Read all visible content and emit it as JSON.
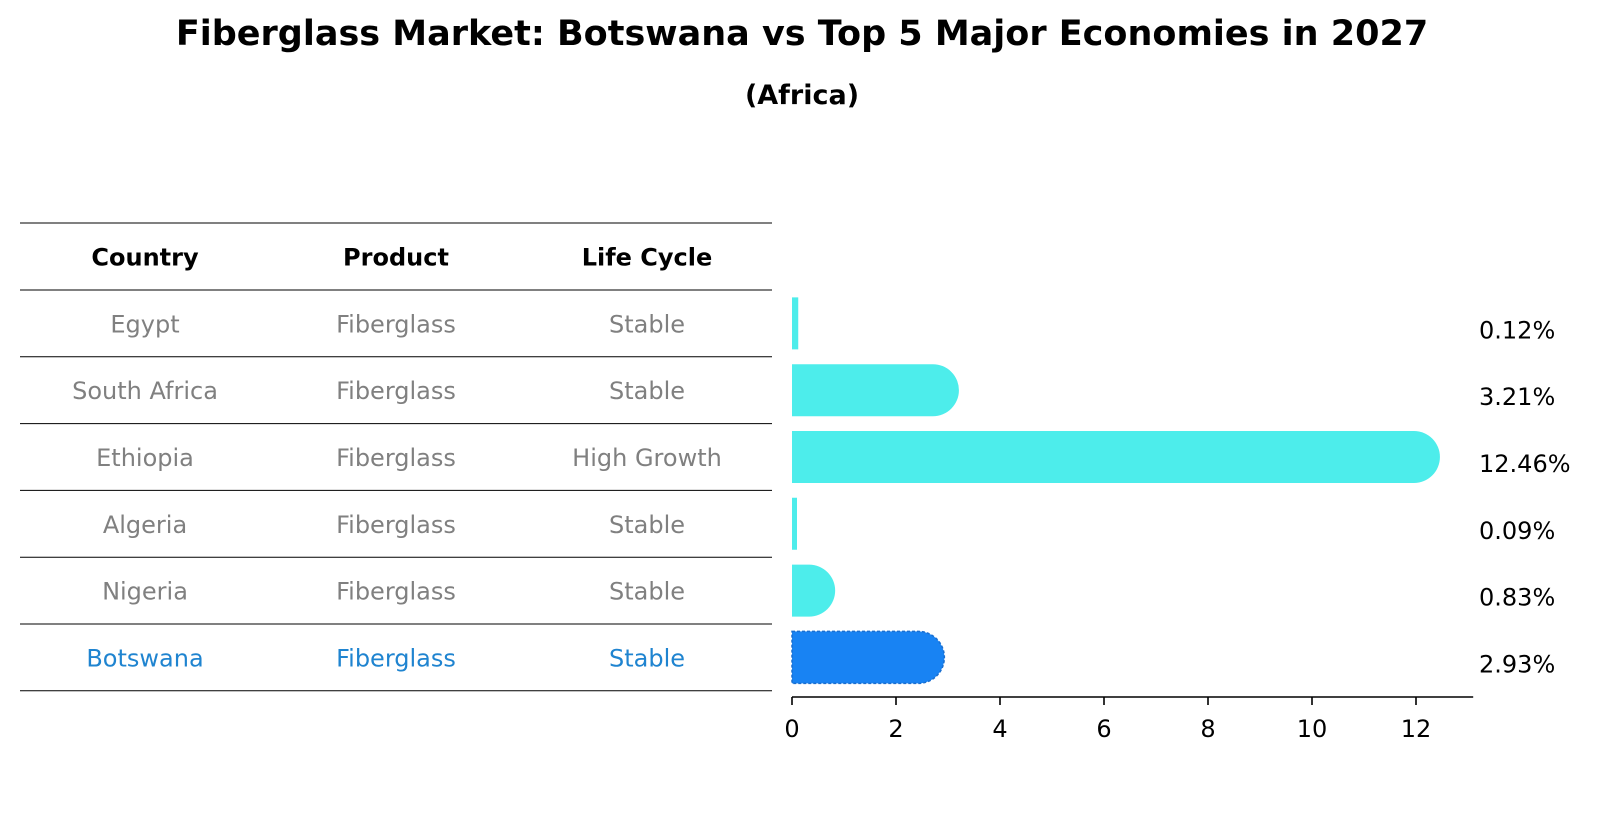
{
  "title": "Fiberglass Market: Botswana vs Top 5 Major Economies in 2027",
  "subtitle": "(Africa)",
  "colors": {
    "bar": "#4DEDEB",
    "highlight_bar": "#1883F3",
    "highlight_text": "#1F84D0",
    "muted_text": "#808080"
  },
  "chart_data": {
    "type": "bar",
    "orientation": "horizontal",
    "table": {
      "columns": [
        "Country",
        "Product",
        "Life Cycle"
      ],
      "rows": [
        {
          "country": "Egypt",
          "product": "Fiberglass",
          "life_cycle": "Stable"
        },
        {
          "country": "South Africa",
          "product": "Fiberglass",
          "life_cycle": "Stable"
        },
        {
          "country": "Ethiopia",
          "product": "Fiberglass",
          "life_cycle": "High Growth"
        },
        {
          "country": "Algeria",
          "product": "Fiberglass",
          "life_cycle": "Stable"
        },
        {
          "country": "Nigeria",
          "product": "Fiberglass",
          "life_cycle": "Stable"
        },
        {
          "country": "Botswana",
          "product": "Fiberglass",
          "life_cycle": "Stable",
          "highlight": true
        }
      ]
    },
    "categories": [
      "Egypt",
      "South Africa",
      "Ethiopia",
      "Algeria",
      "Nigeria",
      "Botswana"
    ],
    "values": [
      0.12,
      3.21,
      12.46,
      0.09,
      0.83,
      2.93
    ],
    "value_labels": [
      "0.12%",
      "3.21%",
      "12.46%",
      "0.09%",
      "0.83%",
      "2.93%"
    ],
    "highlight_category": "Botswana",
    "xlim": [
      0,
      13.1
    ],
    "xticks": [
      0,
      2,
      4,
      6,
      8,
      10,
      12
    ],
    "xlabel": "",
    "ylabel": "",
    "grid": false,
    "legend": false
  }
}
